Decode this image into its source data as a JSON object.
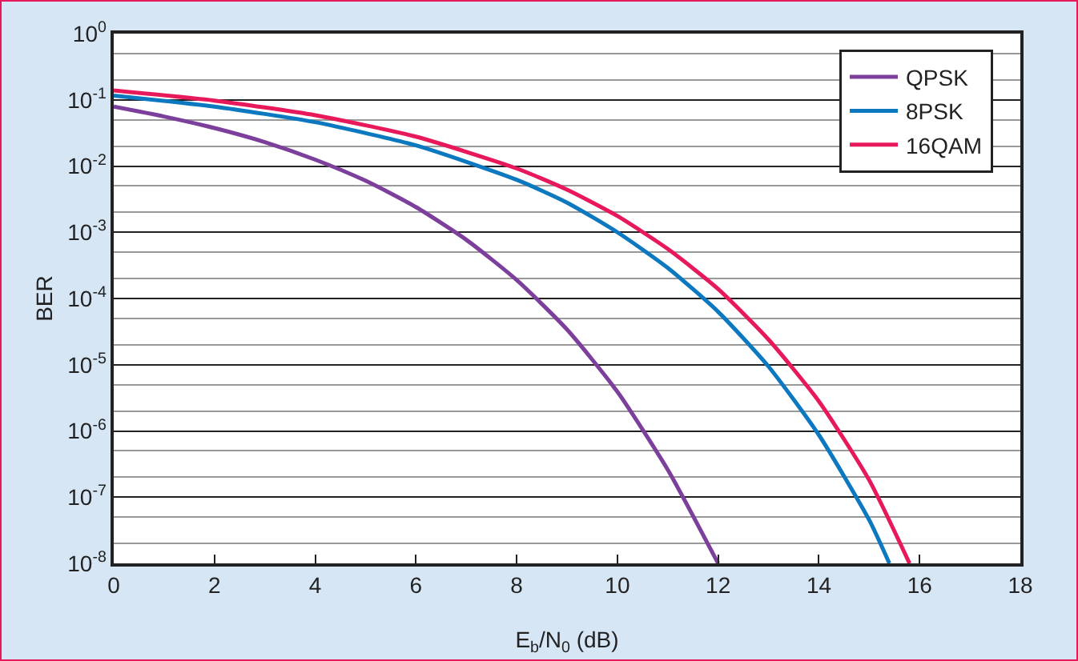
{
  "chart_data": {
    "type": "line",
    "xlabel": "E$_{b}$/N$_{0}$ (dB)",
    "ylabel": "BER",
    "series": [
      {
        "name": "QPSK",
        "color": "#7d3f9c",
        "x": [
          0,
          1,
          2,
          3,
          4,
          5,
          6,
          7,
          8,
          9,
          10,
          11,
          12
        ],
        "values": [
          0.079,
          0.056,
          0.0375,
          0.023,
          0.0125,
          0.006,
          0.0024,
          0.00077,
          0.00019,
          3.4e-05,
          3.9e-06,
          2.6e-07,
          1e-08
        ]
      },
      {
        "name": "8PSK",
        "color": "#0b78c0",
        "x": [
          0,
          2,
          4,
          6,
          8,
          9,
          10,
          11,
          12,
          13,
          14,
          15,
          15.4
        ],
        "values": [
          0.116,
          0.079,
          0.046,
          0.0205,
          0.0062,
          0.0028,
          0.001,
          0.00029,
          6.3e-05,
          9.4e-06,
          8.7e-07,
          4.5e-08,
          1e-08
        ]
      },
      {
        "name": "16QAM",
        "color": "#e8195a",
        "x": [
          0,
          2,
          4,
          6,
          8,
          9,
          10,
          11,
          12,
          13,
          14,
          15,
          15.8
        ],
        "values": [
          0.139,
          0.0975,
          0.0585,
          0.0278,
          0.0092,
          0.0044,
          0.00176,
          0.00056,
          0.000139,
          2.4e-05,
          2.8e-06,
          1.8e-07,
          1e-08
        ]
      }
    ],
    "xlim": [
      0,
      18
    ],
    "xticks": [
      0,
      2,
      4,
      6,
      8,
      10,
      12,
      14,
      16,
      18
    ],
    "ylim": [
      1e-08,
      1
    ],
    "yticks": [
      {
        "value": 1,
        "label": "10$^{0}$"
      },
      {
        "value": 0.1,
        "label": "10$^{-1}$"
      },
      {
        "value": 0.01,
        "label": "10$^{-2}$"
      },
      {
        "value": 0.001,
        "label": "10$^{-3}$"
      },
      {
        "value": 0.0001,
        "label": "10$^{-4}$"
      },
      {
        "value": 1e-05,
        "label": "10$^{-5}$"
      },
      {
        "value": 1e-06,
        "label": "10$^{-6}$"
      },
      {
        "value": 1e-07,
        "label": "10$^{-7}$"
      },
      {
        "value": 1e-08,
        "label": "10$^{-8}$"
      }
    ],
    "log": "y",
    "grid": "y",
    "legend": "top right",
    "marker": "none",
    "line_style": "solid"
  }
}
